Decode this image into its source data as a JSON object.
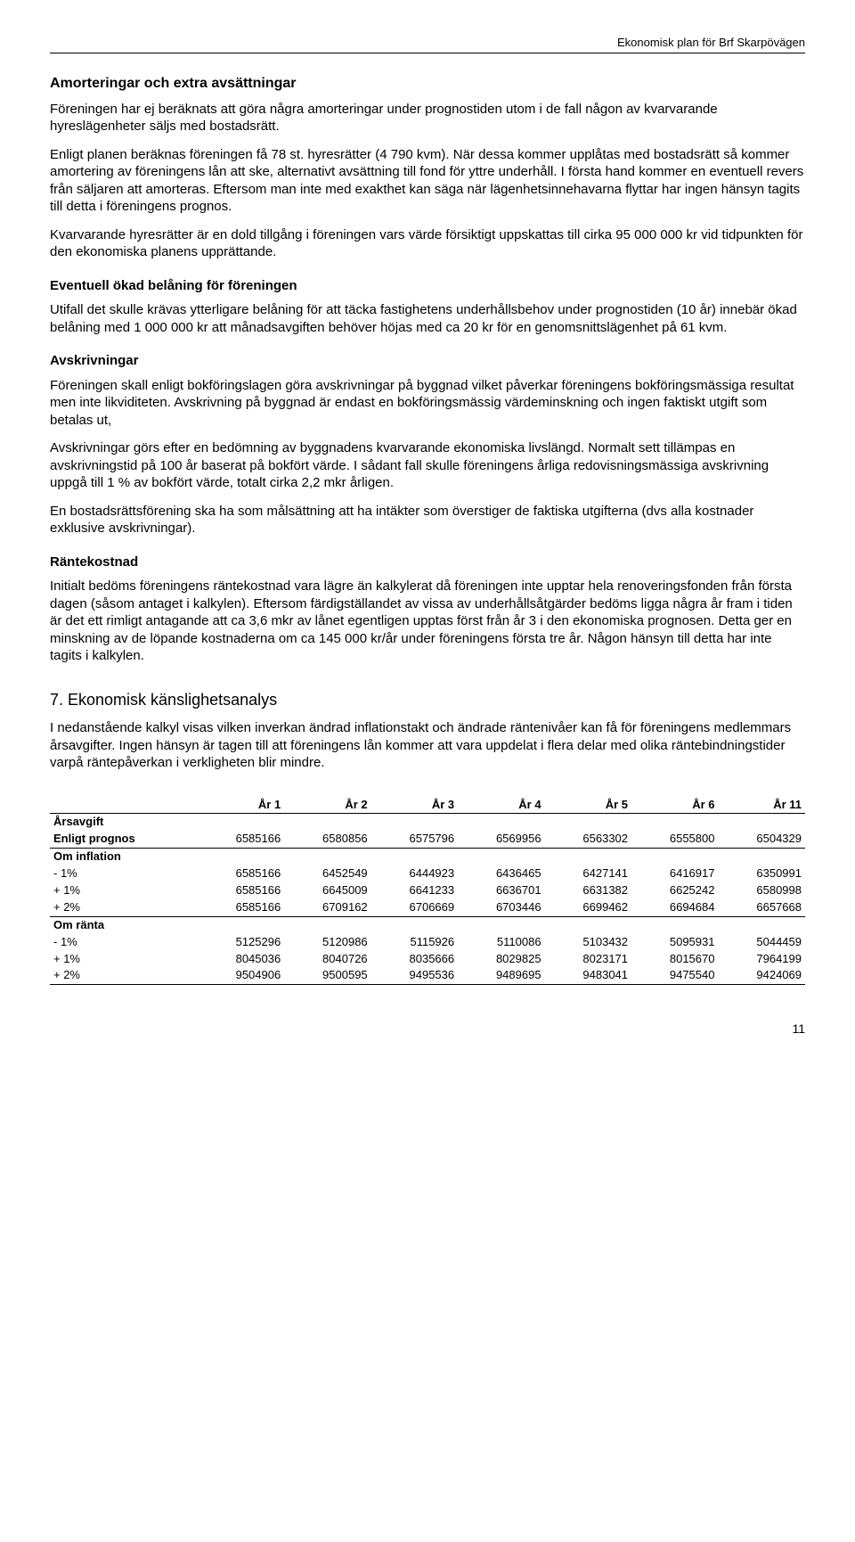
{
  "header": {
    "right": "Ekonomisk plan för Brf Skarpövägen"
  },
  "sections": {
    "amort_title": "Amorteringar och extra avsättningar",
    "amort_p1": "Föreningen har ej beräknats att göra några amorteringar under prognostiden utom i de fall någon av kvarvarande hyreslägenheter säljs med bostadsrätt.",
    "amort_p2": "Enligt planen beräknas föreningen få 78 st. hyresrätter (4 790 kvm). När dessa kommer upplåtas med bostadsrätt så kommer amortering av föreningens lån att ske, alternativt avsättning till fond för yttre underhåll. I första hand kommer en eventuell revers från säljaren att amorteras. Eftersom man inte med exakthet kan säga när lägenhetsinnehavarna flyttar har ingen hänsyn tagits till detta i föreningens prognos.",
    "amort_p3": "Kvarvarande hyresrätter är en dold tillgång i föreningen vars värde försiktigt uppskattas till cirka 95 000 000 kr vid tidpunkten för den ekonomiska planens upprättande.",
    "belan_title": "Eventuell ökad belåning för föreningen",
    "belan_p1": "Utifall det skulle krävas ytterligare belåning för att täcka fastighetens underhållsbehov under prognostiden (10 år) innebär ökad belåning med 1 000 000 kr att månadsavgiften behöver höjas med ca 20 kr för en genomsnittslägenhet på 61 kvm.",
    "avskr_title": "Avskrivningar",
    "avskr_p1": "Föreningen skall enligt bokföringslagen göra avskrivningar på byggnad vilket påverkar föreningens bokföringsmässiga resultat men inte likviditeten. Avskrivning på byggnad är endast en bokföringsmässig värdeminskning och ingen faktiskt utgift som betalas ut,",
    "avskr_p2": "Avskrivningar görs efter en bedömning av byggnadens kvarvarande ekonomiska livslängd. Normalt sett tillämpas en avskrivningstid på 100 år baserat på bokfört värde. I sådant fall skulle föreningens årliga redovisningsmässiga avskrivning uppgå till 1 % av bokfört värde, totalt cirka 2,2 mkr årligen.",
    "avskr_p3": "En bostadsrättsförening ska ha som målsättning att ha intäkter som överstiger de faktiska utgifterna (dvs alla kostnader exklusive avskrivningar).",
    "rante_title": "Räntekostnad",
    "rante_p1": "Initialt bedöms föreningens räntekostnad vara lägre än kalkylerat då föreningen inte upptar hela renoveringsfonden från första dagen (såsom antaget i kalkylen). Eftersom färdigställandet av vissa av underhållsåtgärder bedöms ligga några år fram i tiden är det ett rimligt antagande att ca 3,6 mkr av lånet egentligen upptas först från år 3 i den ekonomiska prognosen. Detta ger en minskning av de löpande kostnaderna om ca 145 000 kr/år under föreningens första tre år. Någon hänsyn till detta har inte tagits i kalkylen.",
    "sec7_title": "7. Ekonomisk känslighetsanalys",
    "sec7_p1": "I nedanstående kalkyl visas vilken inverkan ändrad inflationstakt och ändrade räntenivåer kan få för föreningens medlemmars årsavgifter. Ingen hänsyn är tagen till att föreningens lån kommer att vara uppdelat i flera delar med olika räntebindningstider varpå räntepåverkan i verkligheten blir mindre."
  },
  "table": {
    "headers": [
      "",
      "År 1",
      "År 2",
      "År 3",
      "År 4",
      "År 5",
      "År 6",
      "År 11"
    ],
    "group1": "Årsavgift",
    "row_prognos": [
      "Enligt prognos",
      "6585166",
      "6580856",
      "6575796",
      "6569956",
      "6563302",
      "6555800",
      "6504329"
    ],
    "group2": "Om inflation",
    "row_inf_m1": [
      "- 1%",
      "6585166",
      "6452549",
      "6444923",
      "6436465",
      "6427141",
      "6416917",
      "6350991"
    ],
    "row_inf_p1": [
      "+ 1%",
      "6585166",
      "6645009",
      "6641233",
      "6636701",
      "6631382",
      "6625242",
      "6580998"
    ],
    "row_inf_p2": [
      "+ 2%",
      "6585166",
      "6709162",
      "6706669",
      "6703446",
      "6699462",
      "6694684",
      "6657668"
    ],
    "group3": "Om ränta",
    "row_r_m1": [
      "- 1%",
      "5125296",
      "5120986",
      "5115926",
      "5110086",
      "5103432",
      "5095931",
      "5044459"
    ],
    "row_r_p1": [
      "+ 1%",
      "8045036",
      "8040726",
      "8035666",
      "8029825",
      "8023171",
      "8015670",
      "7964199"
    ],
    "row_r_p2": [
      "+ 2%",
      "9504906",
      "9500595",
      "9495536",
      "9489695",
      "9483041",
      "9475540",
      "9424069"
    ]
  },
  "pagenum": "11"
}
